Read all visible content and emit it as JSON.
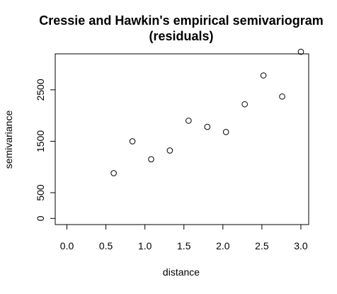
{
  "chart_data": {
    "type": "scatter",
    "title_line1": "Cressie and Hawkin's empirical semivariogram",
    "title_line2": "(residuals)",
    "xlabel": "distance",
    "ylabel": "semivariance",
    "xlim": [
      -0.15,
      3.1
    ],
    "ylim": [
      -120,
      3200
    ],
    "xticks": [
      0.0,
      0.5,
      1.0,
      1.5,
      2.0,
      2.5,
      3.0
    ],
    "xtick_labels": [
      "0.0",
      "0.5",
      "1.0",
      "1.5",
      "2.0",
      "2.5",
      "3.0"
    ],
    "yticks": [
      0,
      500,
      1500,
      2500
    ],
    "ytick_labels": [
      "0",
      "500",
      "1500",
      "2500"
    ],
    "points": [
      {
        "x": 0.6,
        "y": 880
      },
      {
        "x": 0.84,
        "y": 1500
      },
      {
        "x": 1.08,
        "y": 1150
      },
      {
        "x": 1.32,
        "y": 1320
      },
      {
        "x": 1.56,
        "y": 1900
      },
      {
        "x": 1.8,
        "y": 1780
      },
      {
        "x": 2.04,
        "y": 1680
      },
      {
        "x": 2.28,
        "y": 2220
      },
      {
        "x": 2.52,
        "y": 2780
      },
      {
        "x": 2.76,
        "y": 2370
      },
      {
        "x": 3.0,
        "y": 3240
      }
    ]
  }
}
